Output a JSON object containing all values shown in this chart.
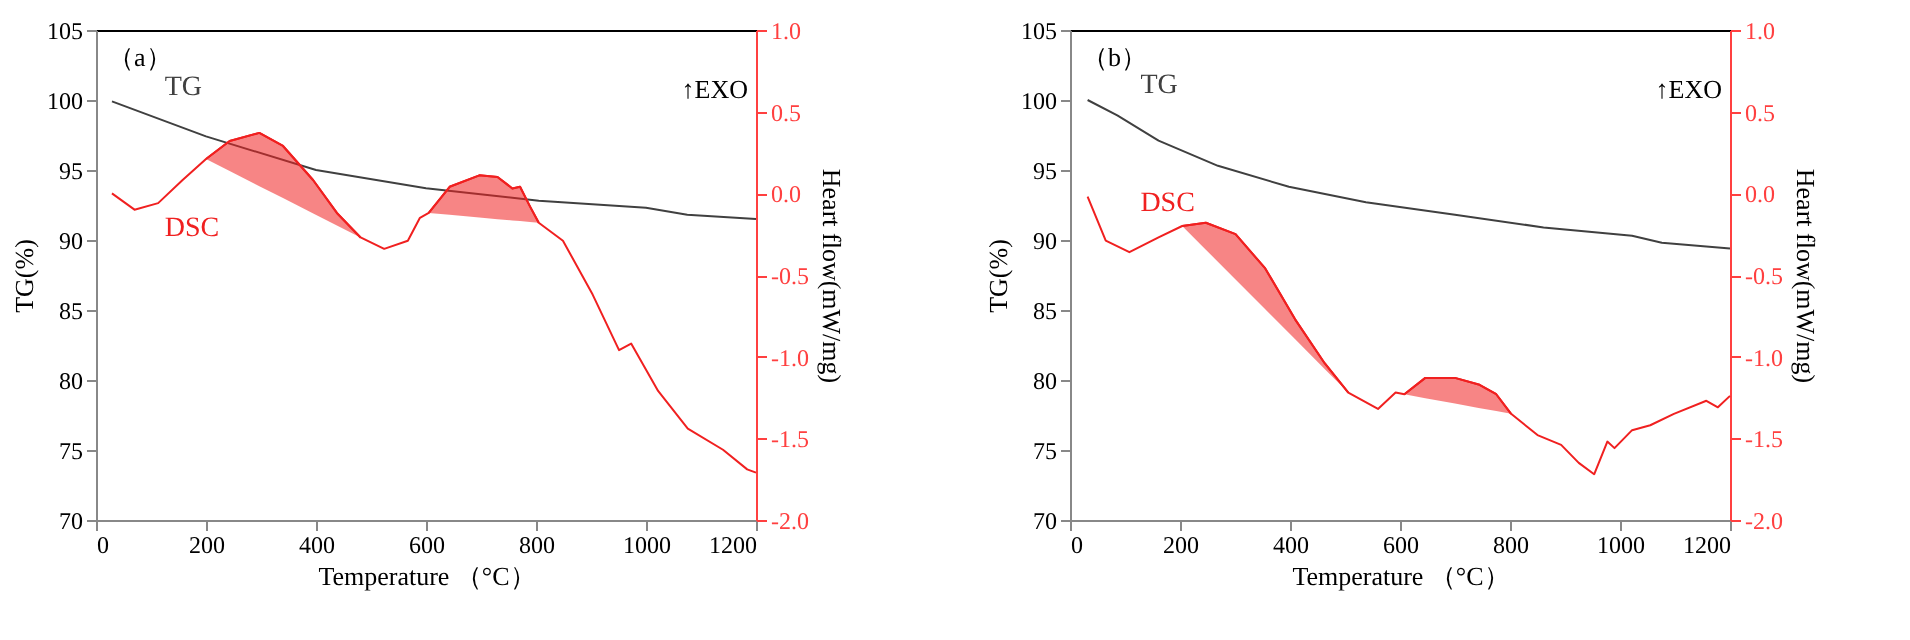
{
  "chart_data": [
    {
      "type": "line",
      "xlabel": "Temperature （°C）",
      "ylabel": "TG(%)",
      "y2label": "Heart flow(mW/mg)",
      "annotations": [
        "（a）",
        "↑EXO"
      ],
      "grid": false,
      "xlim": [
        0,
        1200
      ],
      "xticks": [
        0,
        200,
        400,
        600,
        800,
        1000,
        1200
      ],
      "ylim": [
        70,
        105
      ],
      "yticks": [
        70,
        75,
        80,
        85,
        90,
        95,
        100,
        105
      ],
      "y2lim": [
        -2,
        1
      ],
      "y2ticks": [
        {
          "value": -2,
          "label": "-2.0"
        },
        {
          "value": -1.5,
          "label": "-1.5"
        },
        {
          "value": -1,
          "label": "-1.0"
        },
        {
          "value": -0.5,
          "label": "-0.5"
        },
        {
          "value": 0,
          "label": "0.0"
        },
        {
          "value": 0.5,
          "label": "0.5"
        },
        {
          "value": 1,
          "label": "1.0"
        }
      ],
      "series": [
        {
          "name": "TG",
          "axis": "y",
          "color": "#404040",
          "x": [
            29,
            200,
            400,
            600,
            805,
            1000,
            1075,
            1200
          ],
          "values": [
            99.9,
            97.4,
            95.0,
            93.7,
            92.8,
            92.3,
            91.8,
            91.5
          ]
        },
        {
          "name": "DSC",
          "axis": "y2",
          "color": "#f02020",
          "x": [
            29,
            70,
            113,
            157,
            200,
            243,
            297,
            340,
            395,
            438,
            481,
            524,
            567,
            589,
            605,
            643,
            697,
            730,
            757,
            771,
            789,
            805,
            849,
            903,
            951,
            973,
            1022,
            1076,
            1140,
            1184,
            1200
          ],
          "values": [
            0.0,
            -0.1,
            -0.06,
            0.08,
            0.21,
            0.32,
            0.37,
            0.29,
            0.08,
            -0.12,
            -0.27,
            -0.34,
            -0.29,
            -0.15,
            -0.12,
            0.04,
            0.11,
            0.1,
            0.03,
            0.04,
            -0.08,
            -0.18,
            -0.29,
            -0.62,
            -0.96,
            -0.92,
            -1.21,
            -1.44,
            -1.57,
            -1.69,
            -1.71
          ]
        },
        {
          "axis": "y2",
          "color": "#f02020",
          "x": [
            200,
            243,
            297,
            340,
            395,
            438,
            481
          ],
          "values": [
            0.21,
            0.32,
            0.37,
            0.29,
            0.08,
            -0.12,
            -0.27
          ],
          "upper": [
            0.21,
            0.32,
            0.37,
            0.29,
            0.08,
            -0.12,
            -0.27
          ],
          "lower": [
            0.21,
            0.137,
            0.044,
            -0.029,
            -0.123,
            -0.197,
            -0.27
          ]
        },
        {
          "axis": "y2",
          "color": "#f02020",
          "x": [
            605,
            643,
            697,
            730,
            757,
            771,
            789,
            805
          ],
          "values": [
            -0.12,
            0.04,
            0.11,
            0.1,
            0.03,
            0.04,
            -0.08,
            -0.18
          ],
          "upper": [
            -0.12,
            0.04,
            0.11,
            0.1,
            0.03,
            0.04,
            -0.08,
            -0.18
          ],
          "lower": [
            -0.12,
            -0.131,
            -0.148,
            -0.158,
            -0.166,
            -0.17,
            -0.175,
            -0.18
          ]
        }
      ]
    },
    {
      "type": "line",
      "xlabel": "Temperature （°C）",
      "ylabel": "TG(%)",
      "y2label": "Heart flow(mW/mg)",
      "annotations": [
        "（b）",
        "↑EXO"
      ],
      "grid": false,
      "xlim": [
        0,
        1200
      ],
      "xticks": [
        0,
        200,
        400,
        600,
        800,
        1000,
        1200
      ],
      "ylim": [
        70,
        105
      ],
      "yticks": [
        70,
        75,
        80,
        85,
        90,
        95,
        100,
        105
      ],
      "y2lim": [
        -2,
        1
      ],
      "y2ticks": [
        {
          "value": -2,
          "label": "-2.0"
        },
        {
          "value": -1.5,
          "label": "-1.5"
        },
        {
          "value": -1,
          "label": "-1.0"
        },
        {
          "value": -0.5,
          "label": "-0.5"
        },
        {
          "value": 0,
          "label": "0.0"
        },
        {
          "value": 0.5,
          "label": "0.5"
        },
        {
          "value": 1,
          "label": "1.0"
        }
      ],
      "series": [
        {
          "name": "TG",
          "axis": "y",
          "color": "#404040",
          "x": [
            32,
            86,
            161,
            269,
            398,
            538,
            700,
            861,
            1022,
            1076,
            1200
          ],
          "values": [
            100.0,
            98.9,
            97.1,
            95.3,
            93.8,
            92.7,
            91.8,
            90.9,
            90.3,
            89.8,
            89.4
          ]
        },
        {
          "name": "DSC",
          "axis": "y2",
          "color": "#f02020",
          "x": [
            32,
            65,
            108,
            161,
            204,
            247,
            301,
            355,
            409,
            463,
            506,
            560,
            592,
            608,
            646,
            700,
            743,
            775,
            802,
            850,
            893,
            925,
            953,
            977,
            990,
            1022,
            1055,
            1098,
            1157,
            1178,
            1200
          ],
          "values": [
            -0.02,
            -0.29,
            -0.36,
            -0.27,
            -0.2,
            -0.18,
            -0.25,
            -0.46,
            -0.77,
            -1.04,
            -1.22,
            -1.32,
            -1.22,
            -1.23,
            -1.13,
            -1.13,
            -1.17,
            -1.23,
            -1.35,
            -1.48,
            -1.54,
            -1.65,
            -1.72,
            -1.52,
            -1.56,
            -1.45,
            -1.42,
            -1.35,
            -1.27,
            -1.31,
            -1.24
          ]
        },
        {
          "axis": "y2",
          "color": "#f02020",
          "x": [
            204,
            247,
            301,
            355,
            409,
            463,
            506
          ],
          "values": [
            -0.2,
            -0.18,
            -0.25,
            -0.46,
            -0.77,
            -1.04,
            -1.22
          ],
          "upper": [
            -0.2,
            -0.18,
            -0.25,
            -0.46,
            -0.77,
            -1.04,
            -1.22
          ],
          "lower": [
            -0.2,
            -0.345,
            -0.528,
            -0.71,
            -0.892,
            -1.075,
            -1.22
          ]
        },
        {
          "axis": "y2",
          "color": "#f02020",
          "x": [
            608,
            646,
            700,
            743,
            775,
            802
          ],
          "values": [
            -1.23,
            -1.13,
            -1.13,
            -1.17,
            -1.23,
            -1.35
          ],
          "upper": [
            -1.23,
            -1.13,
            -1.13,
            -1.17,
            -1.23,
            -1.35
          ],
          "lower": [
            -1.23,
            -1.254,
            -1.287,
            -1.314,
            -1.333,
            -1.35
          ]
        }
      ]
    }
  ]
}
